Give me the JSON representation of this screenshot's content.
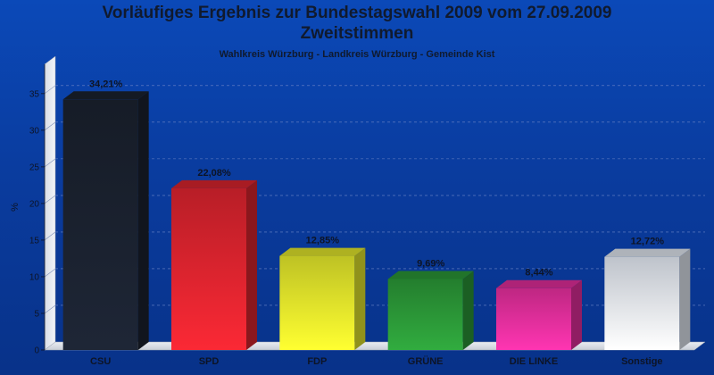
{
  "chart_data": {
    "type": "bar",
    "title": "Vorläufiges Ergebnis zur Bundestagswahl 2009 vom 27.09.2009",
    "subtitle": "Zweitstimmen",
    "subsubtitle": "Wahlkreis Würzburg - Landkreis Würzburg - Gemeinde Kist",
    "xlabel": "",
    "ylabel": "%",
    "ylim": [
      0,
      39
    ],
    "yticks": [
      0,
      5,
      10,
      15,
      20,
      25,
      30,
      35
    ],
    "grid": true,
    "categories": [
      "CSU",
      "SPD",
      "FDP",
      "GRÜNE",
      "DIE LINKE",
      "Sonstige"
    ],
    "values": [
      34.21,
      22.08,
      12.85,
      9.69,
      8.44,
      12.72
    ],
    "value_labels": [
      "34,21%",
      "22,08%",
      "12,85%",
      "9,69%",
      "8,44%",
      "12,72%"
    ],
    "colors": [
      "#1b2230",
      "#e0252f",
      "#e8ec2c",
      "#2c9a38",
      "#e82f9f",
      "#e8eef8"
    ]
  }
}
